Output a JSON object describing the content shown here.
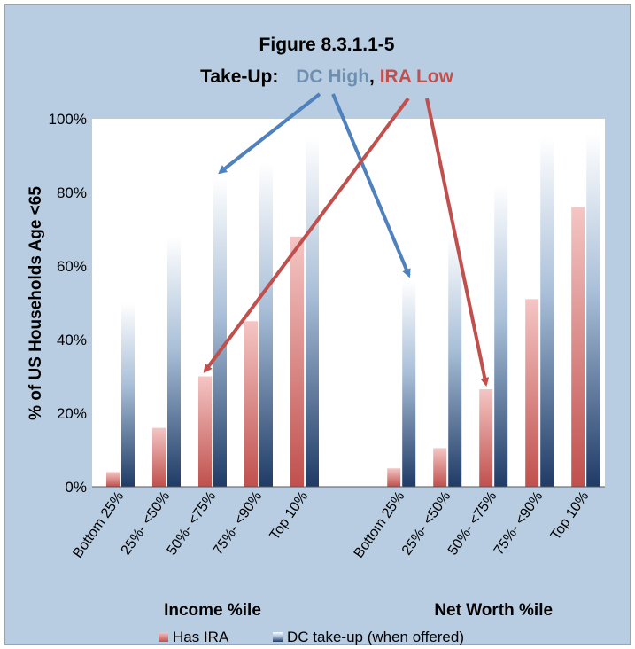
{
  "chart_data": {
    "type": "bar",
    "title": "Figure 8.3.1.1-5",
    "subtitle": {
      "prefix": "Take-Up:",
      "part1": "DC High",
      "separator": ",",
      "part2": "IRA Low",
      "part1_color": "#6f8fb0",
      "part2_color": "#c0504d"
    },
    "ylabel": "% of US Households Age <65",
    "ylim": [
      0,
      100
    ],
    "yticks": [
      "0%",
      "20%",
      "40%",
      "60%",
      "80%",
      "100%"
    ],
    "groups": [
      {
        "label": "Income %ile",
        "categories": [
          "Bottom 25%",
          "25%- <50%",
          "50%- <75%",
          "75%- <90%",
          "Top 10%"
        ]
      },
      {
        "label": "Net Worth %ile",
        "categories": [
          "Bottom 25%",
          "25%- <50%",
          "50%- <75%",
          "75%- <90%",
          "Top 10%"
        ]
      }
    ],
    "series": [
      {
        "name": "Has IRA",
        "color": "#c0504d",
        "values": [
          4,
          16,
          30,
          45,
          68,
          5,
          10.5,
          26.5,
          51,
          76
        ]
      },
      {
        "name": "DC take-up (when offered)",
        "color": "#1f3b66",
        "values": [
          50,
          68,
          84,
          88,
          95,
          56,
          68,
          82,
          95,
          96
        ]
      }
    ],
    "annotations": [
      {
        "type": "arrow",
        "color": "#4f81bd",
        "points_to": {
          "series": "DC take-up (when offered)",
          "index": 2
        }
      },
      {
        "type": "arrow",
        "color": "#4f81bd",
        "points_to": {
          "series": "DC take-up (when offered)",
          "index": 5
        }
      },
      {
        "type": "arrow",
        "color": "#c0504d",
        "points_to": {
          "series": "Has IRA",
          "index": 2
        }
      },
      {
        "type": "arrow",
        "color": "#c0504d",
        "points_to": {
          "series": "Has IRA",
          "index": 7
        }
      }
    ],
    "grid": false,
    "legend_position": "bottom"
  }
}
